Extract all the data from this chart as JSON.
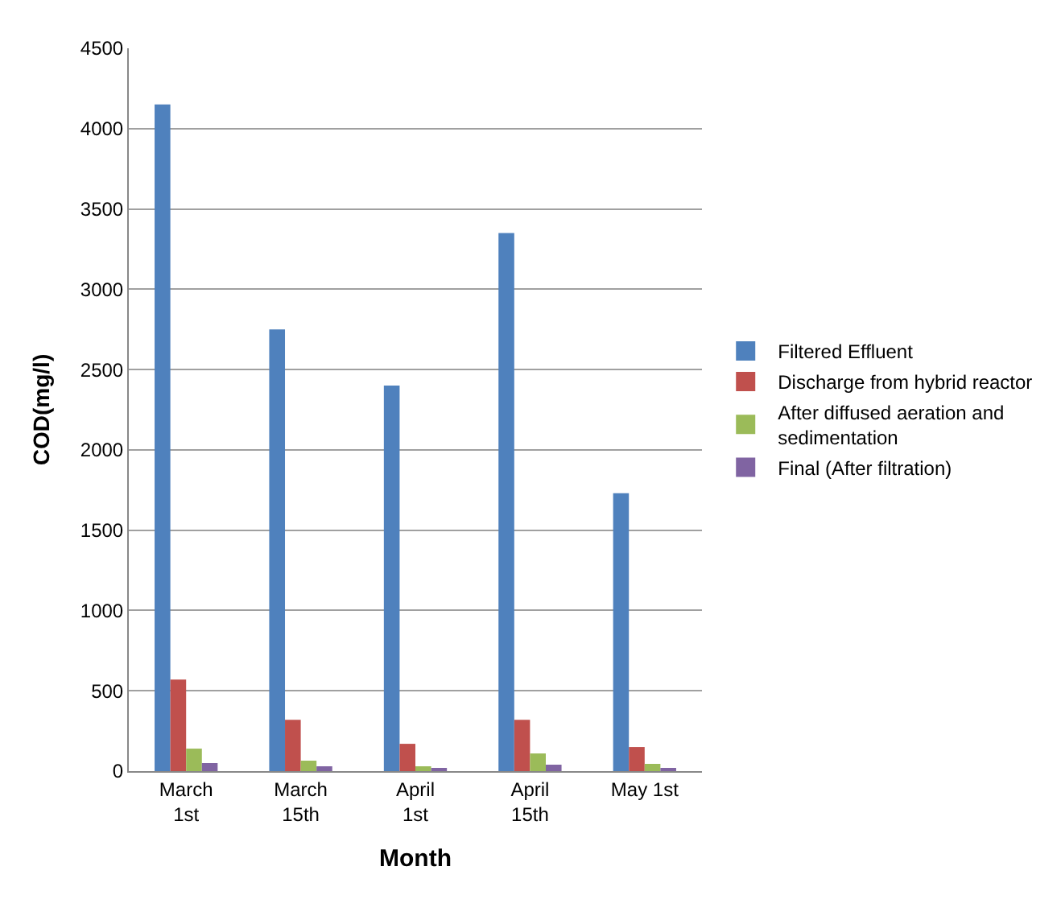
{
  "chart_data": {
    "type": "bar",
    "xlabel": "Month",
    "ylabel": "COD(mg/l)",
    "categories": [
      "March 1st",
      "March 15th",
      "April 1st",
      "April 15th",
      "May 1st"
    ],
    "series": [
      {
        "name": "Filtered Effluent",
        "color": "#4f81bd",
        "values": [
          4150,
          2750,
          2400,
          3350,
          1730
        ]
      },
      {
        "name": "Discharge from hybrid reactor",
        "color": "#c0504d",
        "values": [
          570,
          320,
          170,
          320,
          150
        ]
      },
      {
        "name": "After diffused aeration and sedimentation",
        "color": "#9bbb59",
        "values": [
          140,
          65,
          30,
          110,
          45
        ]
      },
      {
        "name": "Final (After filtration)",
        "color": "#8064a2",
        "values": [
          50,
          30,
          20,
          40,
          20
        ]
      }
    ],
    "ylim": [
      0,
      4500
    ],
    "yticks": [
      0,
      500,
      1000,
      1500,
      2000,
      2500,
      3000,
      3500,
      4000,
      4500
    ],
    "grid": "y",
    "legend": "right"
  }
}
